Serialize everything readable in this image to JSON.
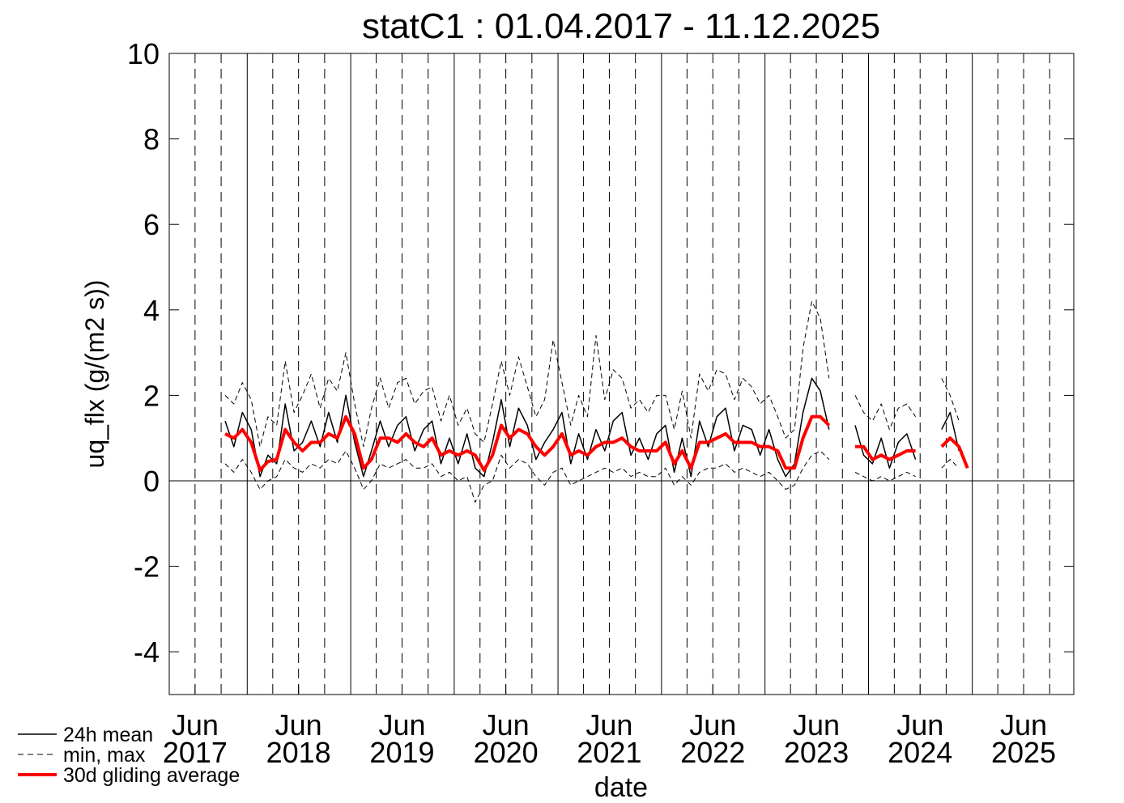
{
  "chart_data": {
    "type": "line",
    "title": "statC1 : 01.04.2017 - 11.12.2025",
    "xlabel": "date",
    "ylabel": "uq_flx (g/(m2 s))",
    "xlim": [
      "2017-04-01",
      "2025-12-25"
    ],
    "ylim": [
      -5,
      10
    ],
    "yticks": [
      -4,
      -2,
      0,
      2,
      4,
      6,
      8,
      10
    ],
    "xticks": [
      {
        "value": "2017-07-01",
        "label": "Jun 2017"
      },
      {
        "value": "2018-07-01",
        "label": "Jun 2018"
      },
      {
        "value": "2019-07-01",
        "label": "Jun 2019"
      },
      {
        "value": "2020-07-01",
        "label": "Jun 2020"
      },
      {
        "value": "2021-07-01",
        "label": "Jun 2021"
      },
      {
        "value": "2022-07-01",
        "label": "Jun 2022"
      },
      {
        "value": "2023-07-01",
        "label": "Jun 2023"
      },
      {
        "value": "2024-07-01",
        "label": "Jun 2024"
      },
      {
        "value": "2025-07-01",
        "label": "Jun 2025"
      }
    ],
    "xgrid_solid": [
      "2018-01-01",
      "2019-01-01",
      "2020-01-01",
      "2021-01-01",
      "2022-01-01",
      "2023-01-01",
      "2024-01-01",
      "2025-01-01"
    ],
    "xgrid_dashed": [
      "2017-07-01",
      "2017-10-01",
      "2018-04-01",
      "2018-07-01",
      "2018-10-01",
      "2019-04-01",
      "2019-07-01",
      "2019-10-01",
      "2020-04-01",
      "2020-07-01",
      "2020-10-01",
      "2021-04-01",
      "2021-07-01",
      "2021-10-01",
      "2022-04-01",
      "2022-07-01",
      "2022-10-01",
      "2023-04-01",
      "2023-07-01",
      "2023-10-01",
      "2024-04-01",
      "2024-07-01",
      "2024-10-01",
      "2025-04-01",
      "2025-07-01",
      "2025-10-01"
    ],
    "x": [
      "2017-10",
      "2017-11",
      "2017-12",
      "2018-01",
      "2018-02",
      "2018-03",
      "2018-04",
      "2018-05",
      "2018-06",
      "2018-07",
      "2018-08",
      "2018-09",
      "2018-10",
      "2018-11",
      "2018-12",
      "2019-01",
      "2019-02",
      "2019-03",
      "2019-04",
      "2019-05",
      "2019-06",
      "2019-07",
      "2019-08",
      "2019-09",
      "2019-10",
      "2019-11",
      "2019-12",
      "2020-01",
      "2020-02",
      "2020-03",
      "2020-04",
      "2020-05",
      "2020-06",
      "2020-07",
      "2020-08",
      "2020-09",
      "2020-10",
      "2020-11",
      "2020-12",
      "2021-01",
      "2021-02",
      "2021-03",
      "2021-04",
      "2021-05",
      "2021-06",
      "2021-07",
      "2021-08",
      "2021-09",
      "2021-10",
      "2021-11",
      "2021-12",
      "2022-01",
      "2022-02",
      "2022-03",
      "2022-04",
      "2022-05",
      "2022-06",
      "2022-07",
      "2022-08",
      "2022-09",
      "2022-10",
      "2022-11",
      "2022-12",
      "2023-01",
      "2023-02",
      "2023-03",
      "2023-04",
      "2023-05",
      "2023-06",
      "2023-07",
      "2023-08",
      "2023-09",
      "2023-10",
      "2023-11",
      "2023-12",
      "2024-01",
      "2024-02",
      "2024-03",
      "2024-04",
      "2024-05",
      "2024-06",
      "2024-07",
      "2024-08",
      "2024-09",
      "2024-10",
      "2024-11",
      "2024-12"
    ],
    "series": [
      {
        "name": "24h mean",
        "color": "#000000",
        "values": [
          1.4,
          0.8,
          1.6,
          1.2,
          0.1,
          0.6,
          0.4,
          1.8,
          0.7,
          0.9,
          1.4,
          0.8,
          1.6,
          0.9,
          2.0,
          0.9,
          0.1,
          0.7,
          1.4,
          0.8,
          1.3,
          1.5,
          0.7,
          1.2,
          1.4,
          0.4,
          1.0,
          0.4,
          1.1,
          0.3,
          0.1,
          0.9,
          1.9,
          0.8,
          1.7,
          1.3,
          0.5,
          0.9,
          1.2,
          1.6,
          0.4,
          1.1,
          0.5,
          1.2,
          0.7,
          1.4,
          1.6,
          0.6,
          1.0,
          0.5,
          1.1,
          1.3,
          0.2,
          1.0,
          0.1,
          1.4,
          0.8,
          1.5,
          1.7,
          0.7,
          1.3,
          1.2,
          0.6,
          1.2,
          0.5,
          0.1,
          0.4,
          1.6,
          2.4,
          2.1,
          1.2,
          null,
          null,
          1.3,
          0.6,
          0.4,
          1.0,
          0.3,
          0.9,
          1.1,
          0.5,
          null,
          null,
          1.2,
          1.6,
          0.7,
          null
        ]
      },
      {
        "name": "min, max",
        "color": "#000000",
        "min": [
          0.4,
          0.2,
          0.5,
          0.2,
          -0.2,
          0.0,
          0.1,
          0.5,
          0.3,
          0.2,
          0.4,
          0.3,
          0.5,
          0.4,
          0.7,
          0.3,
          -0.2,
          0.0,
          0.4,
          0.3,
          0.4,
          0.5,
          0.3,
          0.3,
          0.4,
          0.1,
          0.2,
          0.0,
          0.1,
          -0.5,
          -0.1,
          0.0,
          0.6,
          0.3,
          0.5,
          0.4,
          0.1,
          -0.1,
          0.2,
          0.3,
          -0.1,
          0.0,
          0.1,
          0.2,
          0.3,
          0.2,
          0.3,
          0.1,
          0.2,
          0.1,
          0.1,
          0.3,
          -0.1,
          0.1,
          -0.1,
          0.2,
          0.3,
          0.3,
          0.4,
          0.2,
          0.3,
          0.2,
          0.1,
          0.2,
          0.0,
          -0.2,
          -0.1,
          0.3,
          0.6,
          0.7,
          0.5,
          null,
          null,
          0.2,
          0.1,
          0.0,
          0.1,
          0.0,
          0.1,
          0.2,
          0.1,
          null,
          null,
          0.3,
          0.5,
          0.3,
          null
        ],
        "max": [
          2.0,
          1.8,
          2.3,
          1.9,
          0.8,
          1.5,
          1.3,
          2.8,
          1.6,
          2.0,
          2.5,
          1.7,
          2.4,
          2.1,
          3.0,
          1.8,
          0.8,
          1.7,
          2.4,
          1.7,
          2.3,
          2.4,
          1.8,
          2.1,
          2.2,
          1.4,
          2.0,
          1.3,
          1.7,
          1.1,
          0.9,
          1.8,
          2.8,
          2.0,
          2.9,
          2.2,
          1.5,
          1.9,
          3.3,
          2.3,
          1.3,
          2.0,
          1.5,
          3.4,
          1.9,
          2.6,
          2.4,
          1.7,
          1.9,
          1.6,
          2.0,
          2.0,
          1.2,
          2.1,
          1.0,
          2.5,
          2.1,
          2.6,
          2.5,
          1.9,
          2.4,
          2.2,
          1.8,
          2.0,
          1.5,
          1.0,
          1.2,
          3.1,
          4.2,
          3.8,
          2.4,
          null,
          null,
          2.0,
          1.6,
          1.4,
          1.8,
          1.2,
          1.7,
          1.8,
          1.5,
          null,
          null,
          2.4,
          2.0,
          1.4,
          null
        ]
      },
      {
        "name": "30d gliding average",
        "color": "#ff0000",
        "values": [
          1.1,
          1.0,
          1.2,
          0.9,
          0.25,
          0.45,
          0.5,
          1.2,
          0.9,
          0.7,
          0.9,
          0.9,
          1.1,
          1.0,
          1.5,
          1.1,
          0.3,
          0.5,
          1.0,
          1.0,
          0.9,
          1.1,
          0.9,
          0.8,
          1.0,
          0.6,
          0.7,
          0.6,
          0.7,
          0.6,
          0.25,
          0.6,
          1.3,
          1.0,
          1.2,
          1.1,
          0.8,
          0.6,
          0.8,
          1.1,
          0.6,
          0.7,
          0.6,
          0.8,
          0.9,
          0.9,
          1.0,
          0.8,
          0.7,
          0.7,
          0.7,
          0.9,
          0.4,
          0.7,
          0.3,
          0.9,
          0.9,
          1.0,
          1.1,
          0.9,
          0.9,
          0.9,
          0.8,
          0.8,
          0.7,
          0.3,
          0.3,
          1.0,
          1.5,
          1.5,
          1.3,
          null,
          null,
          0.8,
          0.8,
          0.5,
          0.6,
          0.5,
          0.6,
          0.7,
          0.7,
          null,
          null,
          0.8,
          1.0,
          0.8,
          0.3
        ]
      }
    ]
  }
}
